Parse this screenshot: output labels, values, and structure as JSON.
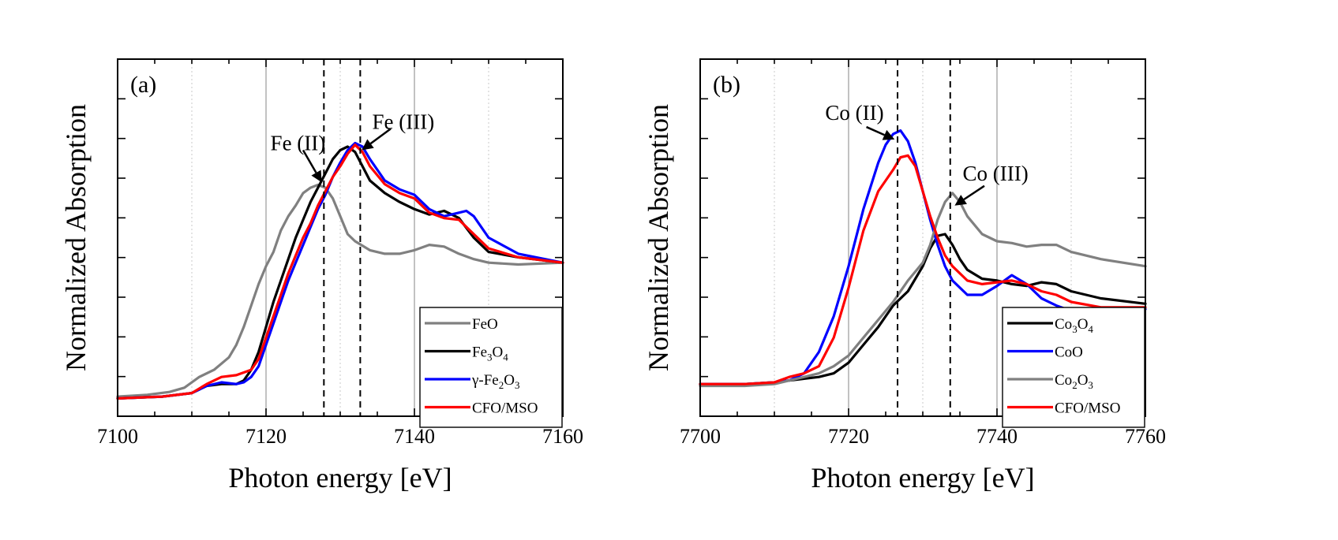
{
  "chart_data": [
    {
      "type": "line",
      "panel_label": "(a)",
      "xlabel": "Photon energy [eV]",
      "ylabel": "Normalized Absorption",
      "xlim": [
        7100,
        7160
      ],
      "ylim": [
        0,
        1
      ],
      "xticks": [
        7100,
        7120,
        7140,
        7160
      ],
      "x_tick_labels": [
        "7100",
        "7120",
        "7140",
        "7160"
      ],
      "grid_x": [
        7110,
        7120,
        7130,
        7140,
        7150
      ],
      "dashed_lines_x": [
        7127.8,
        7132.7
      ],
      "annotations": [
        {
          "text": "Fe (II)",
          "label_at": [
            7124.3,
            0.745
          ],
          "arrow_from": [
            7125.0,
            0.745
          ],
          "arrow_to": [
            7127.5,
            0.655
          ]
        },
        {
          "text": "Fe (III)",
          "label_at": [
            7138.5,
            0.805
          ],
          "arrow_from": [
            7136.8,
            0.805
          ],
          "arrow_to": [
            7132.9,
            0.745
          ]
        }
      ],
      "legend_position": "bottom-right",
      "series": [
        {
          "name": "FeO",
          "label_main": "FeO",
          "label_sub": "",
          "label_tail": "",
          "label_prefix": "",
          "color": "#808080",
          "x": [
            7100,
            7104,
            7107,
            7109,
            7110,
            7111,
            7113,
            7115,
            7116,
            7117,
            7118,
            7119,
            7120,
            7121,
            7122,
            7123,
            7124,
            7125,
            7126,
            7127,
            7128,
            7129,
            7130,
            7131,
            7132,
            7134,
            7136,
            7138,
            7140,
            7142,
            7144,
            7146,
            7148,
            7150,
            7154,
            7160
          ],
          "y": [
            0.055,
            0.06,
            0.068,
            0.08,
            0.095,
            0.11,
            0.13,
            0.165,
            0.2,
            0.25,
            0.31,
            0.37,
            0.42,
            0.46,
            0.52,
            0.56,
            0.59,
            0.625,
            0.64,
            0.648,
            0.64,
            0.61,
            0.56,
            0.51,
            0.49,
            0.465,
            0.455,
            0.455,
            0.465,
            0.48,
            0.475,
            0.455,
            0.44,
            0.43,
            0.425,
            0.43
          ]
        },
        {
          "name": "Fe3O4",
          "label_main": "Fe",
          "label_sub": "3",
          "label_tail": "O4",
          "label_prefix": "",
          "color": "#000000",
          "x": [
            7100,
            7106,
            7110,
            7112,
            7114,
            7116,
            7117,
            7118,
            7119,
            7120,
            7121,
            7122,
            7123,
            7124,
            7125,
            7126,
            7127,
            7128,
            7129,
            7130,
            7131,
            7132,
            7133,
            7134,
            7136,
            7138,
            7140,
            7142,
            7144,
            7146,
            7148,
            7150,
            7154,
            7160
          ],
          "y": [
            0.05,
            0.055,
            0.065,
            0.085,
            0.09,
            0.09,
            0.1,
            0.13,
            0.18,
            0.25,
            0.32,
            0.38,
            0.44,
            0.5,
            0.55,
            0.6,
            0.64,
            0.68,
            0.72,
            0.745,
            0.755,
            0.74,
            0.7,
            0.66,
            0.625,
            0.6,
            0.58,
            0.565,
            0.575,
            0.555,
            0.5,
            0.46,
            0.445,
            0.43
          ]
        },
        {
          "name": "γ-Fe2O3",
          "label_main": "Fe",
          "label_sub": "2",
          "label_tail": "O3",
          "label_prefix": "γ-",
          "color": "#0000ff",
          "x": [
            7100,
            7106,
            7110,
            7112,
            7114,
            7116,
            7117,
            7118,
            7119,
            7120,
            7121,
            7122,
            7123,
            7124,
            7125,
            7126,
            7127,
            7128,
            7129,
            7130,
            7131,
            7132,
            7133,
            7134,
            7136,
            7138,
            7140,
            7142,
            7144,
            7146,
            7147,
            7148,
            7150,
            7154,
            7160
          ],
          "y": [
            0.05,
            0.055,
            0.065,
            0.085,
            0.095,
            0.09,
            0.095,
            0.11,
            0.14,
            0.2,
            0.26,
            0.32,
            0.38,
            0.43,
            0.48,
            0.53,
            0.58,
            0.62,
            0.67,
            0.71,
            0.745,
            0.765,
            0.755,
            0.72,
            0.66,
            0.635,
            0.62,
            0.58,
            0.56,
            0.57,
            0.575,
            0.56,
            0.5,
            0.455,
            0.43
          ]
        },
        {
          "name": "CFO/MSO",
          "label_main": "CFO/MSO",
          "label_sub": "",
          "label_tail": "",
          "label_prefix": "",
          "color": "#ff0000",
          "x": [
            7100,
            7106,
            7110,
            7112,
            7114,
            7116,
            7118,
            7119,
            7120,
            7121,
            7122,
            7123,
            7124,
            7125,
            7126,
            7127,
            7128,
            7129,
            7130,
            7131,
            7132,
            7133,
            7134,
            7136,
            7138,
            7140,
            7142,
            7144,
            7146,
            7148,
            7150,
            7154,
            7160
          ],
          "y": [
            0.05,
            0.055,
            0.065,
            0.09,
            0.11,
            0.115,
            0.13,
            0.16,
            0.22,
            0.28,
            0.34,
            0.4,
            0.45,
            0.5,
            0.54,
            0.59,
            0.63,
            0.67,
            0.7,
            0.735,
            0.76,
            0.74,
            0.7,
            0.65,
            0.625,
            0.61,
            0.57,
            0.555,
            0.55,
            0.51,
            0.47,
            0.445,
            0.43
          ]
        }
      ]
    },
    {
      "type": "line",
      "panel_label": "(b)",
      "xlabel": "Photon energy [eV]",
      "ylabel": "Normalized Absorption",
      "xlim": [
        7700,
        7760
      ],
      "ylim": [
        0,
        1
      ],
      "xticks": [
        7700,
        7720,
        7740,
        7760
      ],
      "x_tick_labels": [
        "7700",
        "7720",
        "7740",
        "7760"
      ],
      "grid_x": [
        7710,
        7720,
        7730,
        7740,
        7750
      ],
      "dashed_lines_x": [
        7726.6,
        7733.7
      ],
      "annotations": [
        {
          "text": "Co (II)",
          "label_at": [
            7720.8,
            0.83
          ],
          "arrow_from": [
            7722.4,
            0.81
          ],
          "arrow_to": [
            7726.2,
            0.775
          ]
        },
        {
          "text": "Co (III)",
          "label_at": [
            7739.8,
            0.66
          ],
          "arrow_from": [
            7738.3,
            0.645
          ],
          "arrow_to": [
            7734.3,
            0.59
          ]
        }
      ],
      "legend_position": "bottom-right",
      "series": [
        {
          "name": "Co3O4",
          "label_main": "Co",
          "label_sub": "3",
          "label_tail": "O4",
          "label_prefix": "",
          "color": "#000000",
          "x": [
            7700,
            7706,
            7710,
            7712,
            7714,
            7716,
            7718,
            7720,
            7722,
            7724,
            7726,
            7728,
            7730,
            7731,
            7732,
            7733,
            7734,
            7735,
            7736,
            7738,
            7740,
            7742,
            7744,
            7746,
            7748,
            7750,
            7754,
            7760
          ],
          "y": [
            0.09,
            0.09,
            0.095,
            0.1,
            0.105,
            0.11,
            0.12,
            0.15,
            0.2,
            0.25,
            0.31,
            0.35,
            0.42,
            0.47,
            0.505,
            0.51,
            0.48,
            0.44,
            0.41,
            0.385,
            0.38,
            0.37,
            0.365,
            0.375,
            0.37,
            0.35,
            0.33,
            0.315
          ]
        },
        {
          "name": "CoO",
          "label_main": "CoO",
          "label_sub": "",
          "label_tail": "",
          "label_prefix": "",
          "color": "#0000ff",
          "x": [
            7700,
            7706,
            7710,
            7712,
            7714,
            7716,
            7718,
            7720,
            7722,
            7724,
            7725,
            7726,
            7727,
            7728,
            7729,
            7730,
            7731,
            7732,
            7733,
            7734,
            7736,
            7738,
            7740,
            7742,
            7744,
            7746,
            7748,
            7750,
            7754,
            7760
          ],
          "y": [
            0.09,
            0.09,
            0.095,
            0.1,
            0.12,
            0.18,
            0.28,
            0.42,
            0.58,
            0.71,
            0.76,
            0.79,
            0.8,
            0.77,
            0.71,
            0.63,
            0.55,
            0.48,
            0.42,
            0.38,
            0.34,
            0.34,
            0.365,
            0.395,
            0.37,
            0.33,
            0.31,
            0.295,
            0.29,
            0.3
          ]
        },
        {
          "name": "Co2O3",
          "label_main": "Co",
          "label_sub": "2",
          "label_tail": "O3",
          "label_prefix": "",
          "color": "#808080",
          "x": [
            7700,
            7706,
            7710,
            7712,
            7714,
            7716,
            7718,
            7720,
            7722,
            7724,
            7726,
            7728,
            7730,
            7731,
            7732,
            7733,
            7734,
            7735,
            7736,
            7738,
            7740,
            7742,
            7744,
            7746,
            7748,
            7750,
            7754,
            7760
          ],
          "y": [
            0.085,
            0.085,
            0.09,
            0.1,
            0.11,
            0.12,
            0.14,
            0.17,
            0.22,
            0.27,
            0.32,
            0.38,
            0.43,
            0.48,
            0.55,
            0.6,
            0.625,
            0.6,
            0.56,
            0.51,
            0.49,
            0.485,
            0.475,
            0.48,
            0.48,
            0.46,
            0.44,
            0.42
          ]
        },
        {
          "name": "CFO/MSO",
          "label_main": "CFO/MSO",
          "label_sub": "",
          "label_tail": "",
          "label_prefix": "",
          "color": "#ff0000",
          "x": [
            7700,
            7706,
            7710,
            7712,
            7714,
            7716,
            7718,
            7720,
            7722,
            7724,
            7726,
            7727,
            7728,
            7729,
            7730,
            7731,
            7732,
            7733,
            7734,
            7736,
            7738,
            7740,
            7742,
            7744,
            7746,
            7748,
            7750,
            7754,
            7760
          ],
          "y": [
            0.09,
            0.09,
            0.095,
            0.11,
            0.12,
            0.14,
            0.22,
            0.36,
            0.52,
            0.63,
            0.69,
            0.725,
            0.73,
            0.7,
            0.63,
            0.56,
            0.5,
            0.45,
            0.42,
            0.38,
            0.37,
            0.375,
            0.38,
            0.37,
            0.35,
            0.34,
            0.32,
            0.305,
            0.305
          ]
        }
      ]
    }
  ]
}
